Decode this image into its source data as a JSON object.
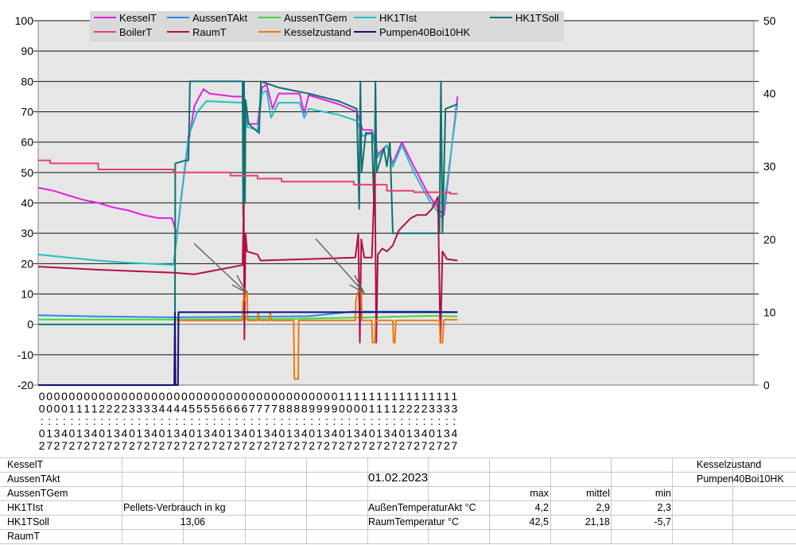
{
  "chart_data": {
    "type": "line",
    "x_unit": "hours",
    "left_ylim": [
      -20,
      100
    ],
    "left_ticks": [
      100,
      90,
      80,
      70,
      60,
      50,
      40,
      30,
      20,
      10,
      0,
      -10,
      -20
    ],
    "right_ylim": [
      0,
      50
    ],
    "right_ticks": [
      50,
      40,
      30,
      20,
      10,
      0
    ],
    "grid": true,
    "legend_position": "top",
    "x_tick_labels_start": "00:02",
    "x_tick_step_minutes": 15,
    "x_tick_count": 56,
    "series": [
      {
        "name": "KesselT",
        "color": "#e020e0",
        "axis": "left",
        "points": [
          [
            0,
            45
          ],
          [
            0.5,
            44
          ],
          [
            1,
            42.5
          ],
          [
            1.5,
            41
          ],
          [
            2,
            40
          ],
          [
            2.5,
            38.5
          ],
          [
            3,
            37.5
          ],
          [
            3.5,
            36
          ],
          [
            4,
            35
          ],
          [
            4.45,
            35
          ],
          [
            4.62,
            29.5
          ],
          [
            4.8,
            45
          ],
          [
            5,
            60
          ],
          [
            5.2,
            72
          ],
          [
            5.5,
            77.5
          ],
          [
            5.7,
            76
          ],
          [
            6.5,
            75
          ],
          [
            6.82,
            75
          ],
          [
            6.95,
            66
          ],
          [
            7.3,
            66
          ],
          [
            7.45,
            78
          ],
          [
            7.6,
            79
          ],
          [
            7.8,
            71
          ],
          [
            8,
            76
          ],
          [
            8.7,
            76
          ],
          [
            8.85,
            69.5
          ],
          [
            9,
            75.5
          ],
          [
            10,
            72.5
          ],
          [
            10.6,
            70
          ],
          [
            10.8,
            64
          ],
          [
            11.1,
            64
          ],
          [
            11.3,
            56
          ],
          [
            11.6,
            59
          ],
          [
            11.8,
            53
          ],
          [
            12.1,
            60
          ],
          [
            12.5,
            52
          ],
          [
            13,
            42.5
          ],
          [
            13.4,
            37
          ],
          [
            13.5,
            36
          ],
          [
            13.95,
            75
          ]
        ]
      },
      {
        "name": "AussenTAkt",
        "color": "#2a8ae0",
        "axis": "left",
        "points": [
          [
            0,
            3
          ],
          [
            2,
            2.6
          ],
          [
            4.5,
            2.3
          ],
          [
            6.8,
            2.5
          ],
          [
            9,
            2.7
          ],
          [
            10.5,
            4.2
          ],
          [
            12,
            4.2
          ],
          [
            13.2,
            4.2
          ],
          [
            13.95,
            4
          ]
        ]
      },
      {
        "name": "AussenTGem",
        "color": "#40d840",
        "axis": "left",
        "points": [
          [
            0,
            1.6
          ],
          [
            4.5,
            1.6
          ],
          [
            9,
            1.9
          ],
          [
            11,
            2.3
          ],
          [
            13,
            2.8
          ],
          [
            13.95,
            2.6
          ]
        ]
      },
      {
        "name": "HK1TIst",
        "color": "#20c0c0",
        "axis": "left",
        "points": [
          [
            0,
            23
          ],
          [
            1,
            22
          ],
          [
            2,
            21
          ],
          [
            3,
            20.3
          ],
          [
            4.5,
            19.6
          ],
          [
            4.62,
            29
          ],
          [
            4.8,
            45
          ],
          [
            5,
            62
          ],
          [
            5.3,
            70
          ],
          [
            5.6,
            73.5
          ],
          [
            6.82,
            73
          ],
          [
            6.95,
            65
          ],
          [
            7.3,
            64
          ],
          [
            7.45,
            76
          ],
          [
            7.6,
            77
          ],
          [
            7.75,
            68
          ],
          [
            8,
            73
          ],
          [
            8.7,
            73
          ],
          [
            8.85,
            68
          ],
          [
            9,
            71
          ],
          [
            10,
            69
          ],
          [
            10.6,
            67
          ],
          [
            10.8,
            62
          ],
          [
            11.1,
            63
          ],
          [
            11.3,
            55
          ],
          [
            11.6,
            59
          ],
          [
            11.8,
            52
          ],
          [
            12.1,
            59
          ],
          [
            12.5,
            50
          ],
          [
            13,
            41
          ],
          [
            13.45,
            35
          ],
          [
            13.95,
            73
          ]
        ]
      },
      {
        "name": "HK1TSoll",
        "color": "#107070",
        "axis": "left",
        "points": [
          [
            0,
            0
          ],
          [
            4.55,
            0
          ],
          [
            4.56,
            53
          ],
          [
            4.9,
            54
          ],
          [
            5.0,
            54
          ],
          [
            5.05,
            80
          ],
          [
            6.8,
            80
          ],
          [
            6.82,
            35
          ],
          [
            6.85,
            80
          ],
          [
            6.88,
            40
          ],
          [
            6.9,
            74
          ],
          [
            7.0,
            66
          ],
          [
            7.35,
            63
          ],
          [
            7.41,
            80
          ],
          [
            8,
            78
          ],
          [
            9,
            76
          ],
          [
            10,
            73.5
          ],
          [
            10.6,
            71
          ],
          [
            10.68,
            38
          ],
          [
            10.72,
            80
          ],
          [
            10.76,
            50
          ],
          [
            10.9,
            63
          ],
          [
            11.1,
            63
          ],
          [
            11.18,
            36
          ],
          [
            11.22,
            80
          ],
          [
            11.26,
            50
          ],
          [
            11.5,
            58
          ],
          [
            11.6,
            52
          ],
          [
            11.7,
            60
          ],
          [
            11.8,
            30
          ],
          [
            13.35,
            30
          ],
          [
            13.4,
            80
          ],
          [
            13.45,
            30
          ],
          [
            13.55,
            71
          ],
          [
            13.95,
            72.5
          ]
        ]
      },
      {
        "name": "BoilerT",
        "color": "#e84070",
        "axis": "left",
        "points": [
          [
            0,
            54
          ],
          [
            0.4,
            54
          ],
          [
            0.4,
            53
          ],
          [
            2,
            53
          ],
          [
            2,
            51
          ],
          [
            4.5,
            51
          ],
          [
            4.5,
            50
          ],
          [
            6.4,
            50
          ],
          [
            6.4,
            49
          ],
          [
            7.3,
            49
          ],
          [
            7.3,
            48
          ],
          [
            8.1,
            48
          ],
          [
            8.1,
            47
          ],
          [
            10.5,
            47
          ],
          [
            10.5,
            46
          ],
          [
            11.6,
            46
          ],
          [
            11.6,
            44
          ],
          [
            12.5,
            44
          ],
          [
            12.5,
            43.5
          ],
          [
            13.7,
            43.5
          ],
          [
            13.7,
            43
          ],
          [
            13.95,
            43
          ]
        ]
      },
      {
        "name": "RaumT",
        "color": "#b0104a",
        "axis": "left",
        "points": [
          [
            0,
            19
          ],
          [
            2,
            18
          ],
          [
            4.5,
            17
          ],
          [
            5.2,
            16.5
          ],
          [
            6,
            18
          ],
          [
            6.8,
            19.5
          ],
          [
            6.84,
            40
          ],
          [
            6.86,
            -5
          ],
          [
            6.9,
            30
          ],
          [
            6.95,
            24
          ],
          [
            7.3,
            23
          ],
          [
            7.4,
            21
          ],
          [
            9,
            21.5
          ],
          [
            10.55,
            22
          ],
          [
            10.65,
            30
          ],
          [
            10.7,
            -6
          ],
          [
            10.75,
            28
          ],
          [
            10.85,
            22
          ],
          [
            11.1,
            22
          ],
          [
            11.2,
            50
          ],
          [
            11.25,
            -6
          ],
          [
            11.3,
            23
          ],
          [
            11.45,
            25
          ],
          [
            11.6,
            24
          ],
          [
            11.8,
            26
          ],
          [
            12,
            31
          ],
          [
            12.2,
            33
          ],
          [
            12.4,
            35
          ],
          [
            12.6,
            36
          ],
          [
            12.9,
            36
          ],
          [
            13.1,
            38
          ],
          [
            13.3,
            42
          ],
          [
            13.38,
            -6
          ],
          [
            13.45,
            24
          ],
          [
            13.6,
            21.5
          ],
          [
            13.95,
            21
          ]
        ]
      },
      {
        "name": "Kesselzustand",
        "color": "#f07810",
        "axis": "left",
        "points": [
          [
            4.6,
            1.3
          ],
          [
            6.8,
            1.3
          ],
          [
            6.82,
            8
          ],
          [
            6.88,
            8
          ],
          [
            6.9,
            11
          ],
          [
            6.95,
            11
          ],
          [
            6.97,
            1.3
          ],
          [
            7.3,
            1.3
          ],
          [
            7.32,
            4
          ],
          [
            7.36,
            1.3
          ],
          [
            7.7,
            1.3
          ],
          [
            7.72,
            4
          ],
          [
            7.76,
            1.3
          ],
          [
            8.5,
            1.3
          ],
          [
            8.52,
            -18
          ],
          [
            8.65,
            -18
          ],
          [
            8.67,
            1.3
          ],
          [
            10.55,
            1.3
          ],
          [
            10.57,
            8
          ],
          [
            10.65,
            11
          ],
          [
            10.75,
            11
          ],
          [
            10.77,
            1.3
          ],
          [
            11.1,
            1.3
          ],
          [
            11.12,
            -6
          ],
          [
            11.2,
            -6
          ],
          [
            11.22,
            1.3
          ],
          [
            11.8,
            1.3
          ],
          [
            11.82,
            -6
          ],
          [
            11.87,
            -6
          ],
          [
            11.9,
            1.3
          ],
          [
            13.35,
            1.3
          ],
          [
            13.38,
            -6
          ],
          [
            13.45,
            -6
          ],
          [
            13.5,
            1.5
          ],
          [
            13.95,
            1.5
          ]
        ]
      },
      {
        "name": "Pumpen40Boi10HK",
        "color": "#10107a",
        "axis": "right",
        "points": [
          [
            0,
            0
          ],
          [
            4.53,
            0
          ],
          [
            4.55,
            10
          ],
          [
            4.57,
            0
          ],
          [
            4.65,
            0
          ],
          [
            4.67,
            10
          ],
          [
            13.95,
            10
          ]
        ]
      }
    ]
  },
  "table": {
    "legend_rows": [
      "KesselT",
      "AussenTAkt",
      "AussenTGem",
      "HK1TIst",
      "HK1TSoll",
      "RaumT"
    ],
    "right_labels": [
      "Kesselzustand",
      "Pumpen40Boi10HK"
    ],
    "date": "01.02.2023",
    "pellets_label": "Pellets-Verbrauch in kg",
    "pellets_value": "13,06",
    "stats_headers": [
      "max",
      "mittel",
      "min"
    ],
    "stats": [
      {
        "label": "AußenTemperaturAkt °C",
        "max": "4,2",
        "mittel": "2,9",
        "min": "2,3"
      },
      {
        "label": "RaumTemperatur °C",
        "max": "42,5",
        "mittel": "21,18",
        "min": "-5,7"
      }
    ]
  }
}
